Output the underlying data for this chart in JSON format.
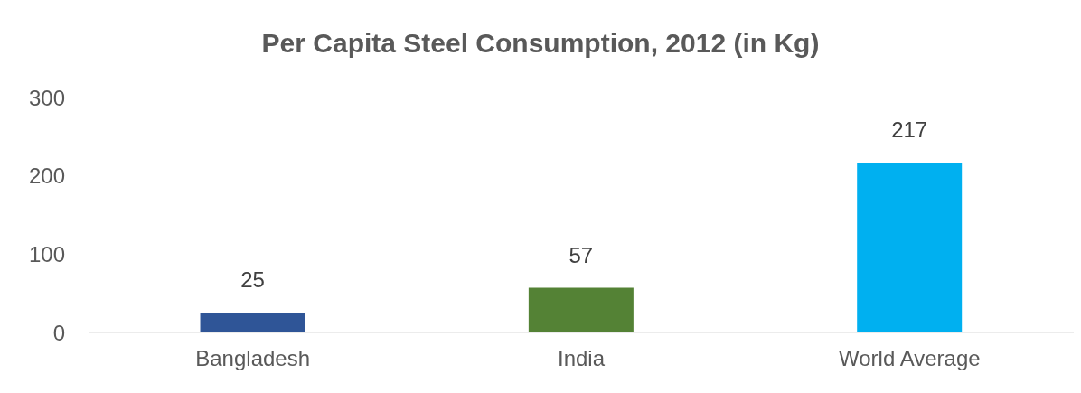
{
  "chart_data": {
    "type": "bar",
    "title": "Per Capita Steel Consumption, 2012 (in Kg)",
    "categories": [
      "Bangladesh",
      "India",
      "World Average"
    ],
    "values": [
      25,
      57,
      217
    ],
    "colors": [
      "#2f5597",
      "#548235",
      "#00b0f0"
    ],
    "ylim": [
      0,
      300
    ],
    "yticks": [
      0,
      100,
      200,
      300
    ],
    "data_labels": true,
    "grid": false,
    "legend": false
  }
}
